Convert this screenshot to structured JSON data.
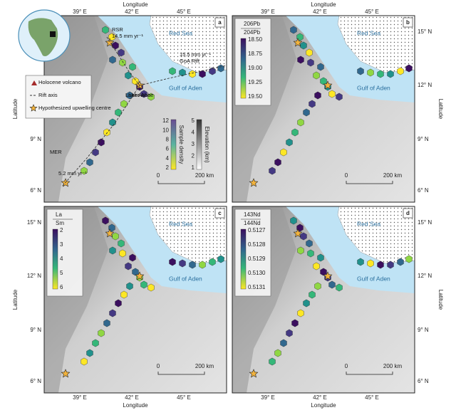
{
  "axes": {
    "x_title": "Longitude",
    "y_title": "Latitude",
    "xticks": [
      "39° E",
      "42° E",
      "45° E"
    ],
    "yticks": [
      "15° N",
      "12° N",
      "9° N",
      "6° N"
    ]
  },
  "scale_bar": {
    "start": "0",
    "end": "200 km"
  },
  "panels": [
    {
      "letter": "a",
      "labels": {
        "rsr": "RSR",
        "rsr_rate": "14.5 mm yr⁻¹",
        "goa_rate": "15.5 mm yr⁻¹",
        "goa": "GoA Rift",
        "red_sea": "Red Sea",
        "gulf": "Gulf of Aden",
        "lake": "Lake Abhe",
        "mer": "MER",
        "mer_rate": "5.2 mm yr⁻¹"
      },
      "legend": [
        "Holocene volcano",
        "Rift axis",
        "Hypothesized upwelling centre"
      ],
      "colorbars": [
        {
          "title": "Sample density",
          "ticks": [
            "2",
            "4",
            "6",
            "8",
            "10",
            "12"
          ]
        },
        {
          "title": "Elevation (km)",
          "ticks": [
            "1",
            "2",
            "3",
            "4",
            "5"
          ]
        }
      ]
    },
    {
      "letter": "b",
      "labels": {
        "red_sea": "Red Sea",
        "gulf": "Gulf of Aden"
      },
      "colorbar": {
        "num": "206Pb",
        "den": "204Pb",
        "ticks": [
          "18.50",
          "18.75",
          "19.00",
          "19.25",
          "19.50"
        ]
      }
    },
    {
      "letter": "c",
      "labels": {
        "red_sea": "Red Sea",
        "gulf": "Gulf of Aden"
      },
      "colorbar": {
        "num": "La",
        "den": "Sm",
        "ticks": [
          "2",
          "3",
          "4",
          "5",
          "6"
        ]
      }
    },
    {
      "letter": "d",
      "labels": {
        "red_sea": "Red Sea",
        "gulf": "Gulf of Aden"
      },
      "colorbar": {
        "num": "143Nd",
        "den": "144Nd",
        "ticks": [
          "0.5127",
          "0.5128",
          "0.5129",
          "0.5130",
          "0.5131"
        ]
      }
    }
  ]
}
